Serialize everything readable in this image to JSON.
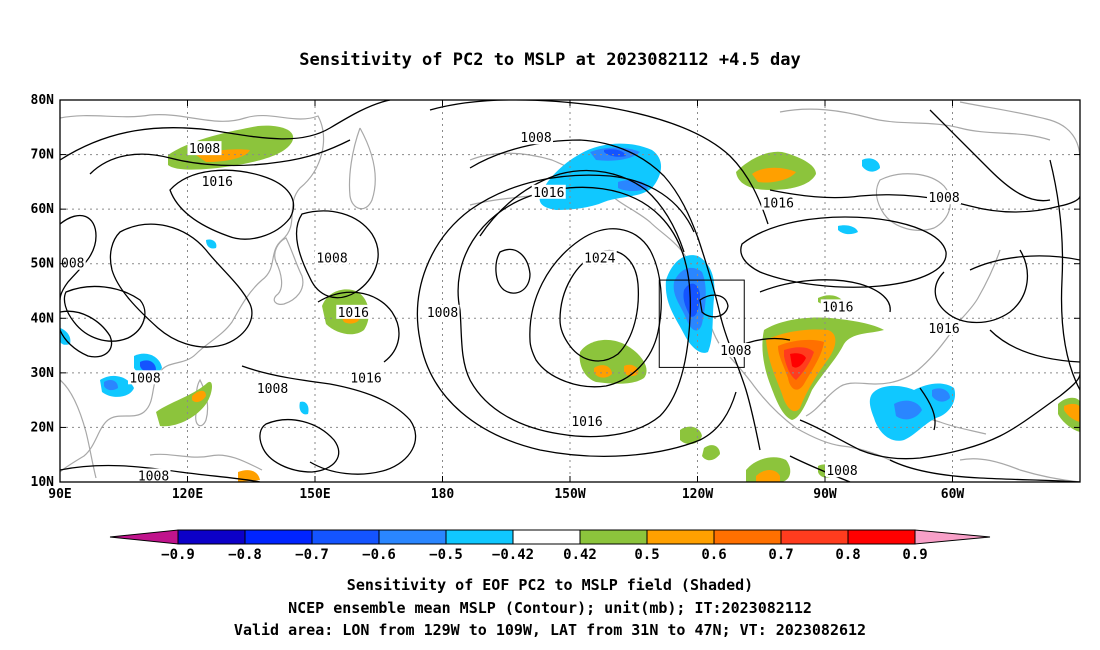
{
  "title": "Sensitivity of PC2 to MSLP at 2023082112 +4.5 day",
  "map": {
    "lat_labels": [
      "80N",
      "70N",
      "60N",
      "50N",
      "40N",
      "30N",
      "20N",
      "10N"
    ],
    "lon_labels": [
      "90E",
      "120E",
      "150E",
      "180",
      "150W",
      "120W",
      "90W",
      "60W"
    ],
    "contour_labels": [
      {
        "text": "1008",
        "lon": 124,
        "lat": 71
      },
      {
        "text": "1016",
        "lon": 127,
        "lat": 65
      },
      {
        "text": "008",
        "lon": 93,
        "lat": 50
      },
      {
        "text": "1008",
        "lon": 154,
        "lat": 51
      },
      {
        "text": "1016",
        "lon": 159,
        "lat": 41
      },
      {
        "text": "1016",
        "lon": 162,
        "lat": 29
      },
      {
        "text": "1008",
        "lon": 110,
        "lat": 29
      },
      {
        "text": "1008",
        "lon": 140,
        "lat": 27
      },
      {
        "text": "1008",
        "lon": 112,
        "lat": 11
      },
      {
        "text": "1008",
        "lon": 180,
        "lat": 41
      },
      {
        "text": "1008",
        "lon": -158,
        "lat": 73
      },
      {
        "text": "1016",
        "lon": -155,
        "lat": 63
      },
      {
        "text": "1024",
        "lon": -143,
        "lat": 51
      },
      {
        "text": "1016",
        "lon": -146,
        "lat": 21
      },
      {
        "text": "1008",
        "lon": -111,
        "lat": 34
      },
      {
        "text": "1016",
        "lon": -101,
        "lat": 61
      },
      {
        "text": "1016",
        "lon": -87,
        "lat": 42
      },
      {
        "text": "1008",
        "lon": -86,
        "lat": 12
      },
      {
        "text": "1008",
        "lon": -62,
        "lat": 62
      },
      {
        "text": "1016",
        "lon": -62,
        "lat": 38
      }
    ],
    "valid_box": {
      "lon_min": -129,
      "lon_max": -109,
      "lat_min": 31,
      "lat_max": 47
    }
  },
  "colorbar": {
    "labels": [
      "-0.9",
      "-0.8",
      "-0.7",
      "-0.6",
      "-0.5",
      "-0.42",
      "0.42",
      "0.5",
      "0.6",
      "0.7",
      "0.8",
      "0.9"
    ],
    "colors": [
      "#0c00c8",
      "#0024ff",
      "#1454ff",
      "#2a86ff",
      "#10c8ff",
      "#ffffff",
      "#8cc43c",
      "#ffa000",
      "#ff7000",
      "#ff3c1e",
      "#ff0000"
    ],
    "low_end_color": "#c0148c",
    "high_end_color": "#f8a0c8"
  },
  "caption": {
    "line1": "Sensitivity of EOF PC2 to MSLP field (Shaded)",
    "line2": "NCEP ensemble mean MSLP (Contour); unit(mb); IT:2023082112",
    "line3": "Valid area: LON from 129W to 109W, LAT from 31N to 47N; VT: 2023082612"
  }
}
